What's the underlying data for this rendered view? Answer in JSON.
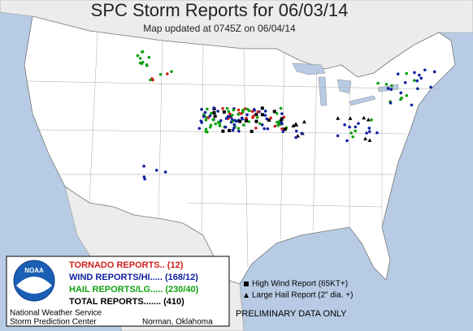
{
  "header": {
    "title": "SPC Storm Reports for 06/03/14",
    "subtitle": "Map updated at 0745Z on 06/04/14"
  },
  "legend": {
    "logo": "NOAA",
    "rows": [
      "TORNADO REPORTS.. (12)",
      "WIND REPORTS/HI..... (168/12)",
      "HAIL REPORTS/LG..... (230/40)",
      "TOTAL REPORTS....... (410)"
    ],
    "symbols": [
      "High Wind Report (65KT+)",
      "Large Hail Report (2\" dia. +)"
    ],
    "notice": "PRELIMINARY DATA ONLY"
  },
  "footer": {
    "agency": "National Weather Service",
    "center": "Storm Prediction Center",
    "location": "Norman, Oklahoma"
  }
}
